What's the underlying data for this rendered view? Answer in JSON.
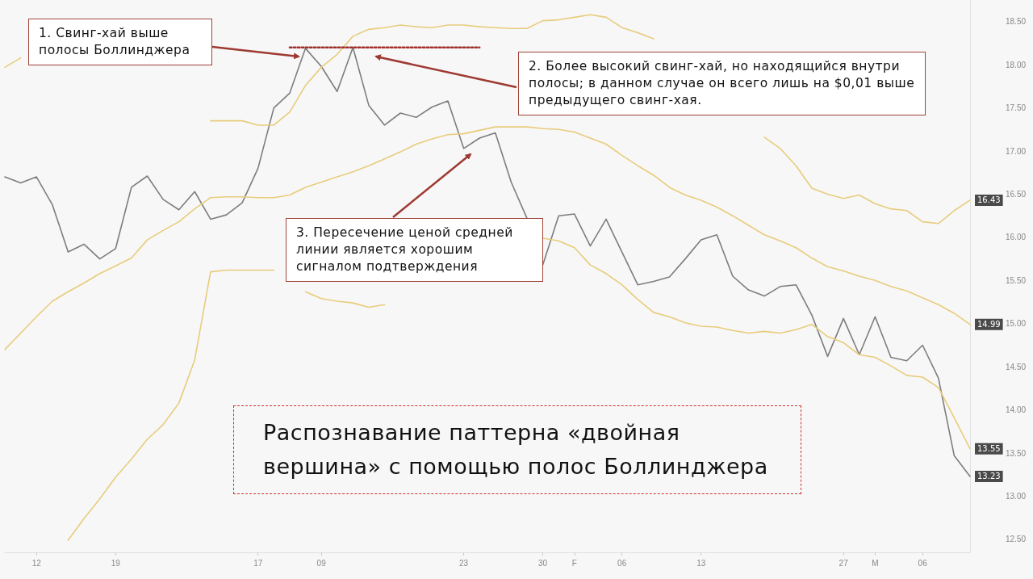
{
  "chart_data": {
    "type": "line",
    "title": "Распознавание паттерна «двойная вершина» с помощью полос Боллинджера",
    "annotations": [
      "1. Свинг-хай выше полосы Боллинджера",
      "2. Более высокий свинг-хай, но находящийся внутри полосы; в данном случае он всего лишь на $0,01 выше предыдущего свинг-хая.",
      "3. Пересечение ценой средней линии является хорошим сигналом подтверждения"
    ],
    "categories": [
      null,
      null,
      "12",
      null,
      null,
      null,
      null,
      "19",
      null,
      null,
      null,
      null,
      null,
      null,
      null,
      null,
      "17",
      null,
      null,
      null,
      "09",
      null,
      null,
      null,
      null,
      null,
      null,
      null,
      null,
      "23",
      null,
      null,
      null,
      null,
      "30",
      null,
      "F",
      null,
      null,
      "06",
      null,
      null,
      null,
      null,
      "13",
      null,
      null,
      null,
      null,
      null,
      null,
      null,
      null,
      "27",
      null,
      "M",
      null,
      null,
      "06",
      null,
      null,
      null
    ],
    "series": [
      {
        "color": "#7d7d7d",
        "values": [
          16.7,
          16.63,
          16.7,
          16.38,
          15.83,
          15.92,
          15.75,
          15.87,
          16.58,
          16.71,
          16.44,
          16.32,
          16.53,
          16.21,
          16.26,
          16.4,
          16.8,
          17.5,
          17.67,
          18.19,
          17.98,
          17.69,
          18.2,
          17.53,
          17.3,
          17.44,
          17.39,
          17.51,
          17.58,
          17.03,
          17.15,
          17.21,
          16.64,
          16.22,
          15.68,
          16.25,
          16.27,
          15.9,
          16.21,
          15.83,
          15.45,
          15.49,
          15.54,
          15.75,
          15.97,
          16.03,
          15.55,
          15.39,
          15.32,
          15.43,
          15.45,
          15.1,
          14.62,
          15.06,
          14.64,
          15.08,
          14.61,
          14.57,
          14.75,
          14.37,
          13.47,
          13.23
        ],
        "value_labels": [
          null,
          null,
          null,
          null,
          null,
          null,
          null,
          null,
          null,
          null,
          null,
          null,
          null,
          null,
          null,
          null,
          null,
          null,
          null,
          null,
          null,
          null,
          null,
          null,
          null,
          null,
          null,
          null,
          null,
          null,
          null,
          null,
          null,
          null,
          null,
          null,
          null,
          null,
          null,
          null,
          null,
          null,
          null,
          null,
          null,
          null,
          null,
          null,
          null,
          null,
          null,
          null,
          null,
          null,
          null,
          null,
          null,
          null,
          null,
          null,
          null,
          "13.23"
        ]
      },
      {
        "color": "#e8cc7c",
        "values": [
          17.97,
          18.08,
          null,
          null,
          null,
          null,
          null,
          null,
          null,
          null,
          null,
          null,
          null,
          17.35,
          17.35,
          17.35,
          17.3,
          17.3,
          17.45,
          17.76,
          17.97,
          18.12,
          18.33,
          18.41,
          18.43,
          18.46,
          18.44,
          18.43,
          18.46,
          18.46,
          18.44,
          18.43,
          18.42,
          18.42,
          18.51,
          18.52,
          18.55,
          18.58,
          18.55,
          18.43,
          18.37,
          18.3,
          null,
          null,
          null,
          null,
          null,
          null,
          17.16,
          17.03,
          16.83,
          16.57,
          16.5,
          16.45,
          16.49,
          16.39,
          16.33,
          16.31,
          16.18,
          16.16,
          16.31,
          16.43
        ],
        "value_labels": [
          null,
          null,
          null,
          null,
          null,
          null,
          null,
          null,
          null,
          null,
          null,
          null,
          null,
          null,
          null,
          null,
          null,
          null,
          null,
          null,
          null,
          null,
          null,
          null,
          null,
          null,
          null,
          null,
          null,
          null,
          null,
          null,
          null,
          null,
          null,
          null,
          null,
          null,
          null,
          null,
          null,
          null,
          null,
          null,
          null,
          null,
          null,
          null,
          null,
          null,
          null,
          null,
          null,
          null,
          null,
          null,
          null,
          null,
          null,
          null,
          null,
          "16.43"
        ]
      },
      {
        "color": "#e8cc7c",
        "values": [
          14.7,
          14.89,
          15.08,
          15.26,
          15.37,
          15.47,
          15.58,
          15.67,
          15.76,
          15.97,
          16.08,
          16.18,
          16.33,
          16.46,
          16.47,
          16.47,
          16.46,
          16.46,
          16.49,
          16.58,
          16.64,
          16.7,
          16.76,
          16.83,
          16.91,
          16.99,
          17.08,
          17.14,
          17.19,
          17.2,
          17.24,
          17.28,
          17.28,
          17.28,
          17.26,
          17.25,
          17.22,
          17.15,
          17.08,
          16.95,
          16.83,
          16.72,
          16.58,
          16.49,
          16.43,
          16.35,
          16.25,
          16.14,
          16.03,
          15.96,
          15.88,
          15.76,
          15.66,
          15.61,
          15.55,
          15.5,
          15.43,
          15.38,
          15.3,
          15.22,
          15.12,
          14.99
        ],
        "value_labels": [
          null,
          null,
          null,
          null,
          null,
          null,
          null,
          null,
          null,
          null,
          null,
          null,
          null,
          null,
          null,
          null,
          null,
          null,
          null,
          null,
          null,
          null,
          null,
          null,
          null,
          null,
          null,
          null,
          null,
          null,
          null,
          null,
          null,
          null,
          null,
          null,
          null,
          null,
          null,
          null,
          null,
          null,
          null,
          null,
          null,
          null,
          null,
          null,
          null,
          null,
          null,
          null,
          null,
          null,
          null,
          null,
          null,
          null,
          null,
          null,
          null,
          "14.99"
        ]
      },
      {
        "color": "#e8cc7c",
        "values": [
          null,
          null,
          null,
          null,
          12.49,
          12.74,
          12.97,
          13.22,
          13.43,
          13.66,
          13.83,
          14.08,
          14.58,
          15.6,
          15.62,
          15.62,
          15.62,
          15.62,
          null,
          15.37,
          15.29,
          15.26,
          15.24,
          15.19,
          15.22,
          null,
          null,
          null,
          null,
          null,
          null,
          null,
          null,
          null,
          15.99,
          15.96,
          15.88,
          15.68,
          15.58,
          15.45,
          15.28,
          15.13,
          15.08,
          15.01,
          14.97,
          14.96,
          14.92,
          14.89,
          14.91,
          14.89,
          14.93,
          14.99,
          14.85,
          14.78,
          14.64,
          14.61,
          14.51,
          14.4,
          14.38,
          14.26,
          13.91,
          13.55
        ],
        "value_labels": [
          null,
          null,
          null,
          null,
          null,
          null,
          null,
          null,
          null,
          null,
          null,
          null,
          null,
          null,
          null,
          null,
          null,
          null,
          null,
          null,
          null,
          null,
          null,
          null,
          null,
          null,
          null,
          null,
          null,
          null,
          null,
          null,
          null,
          null,
          null,
          null,
          null,
          null,
          null,
          null,
          null,
          null,
          null,
          null,
          null,
          null,
          null,
          null,
          null,
          null,
          null,
          null,
          null,
          null,
          null,
          null,
          null,
          null,
          null,
          null,
          null,
          "13.55"
        ]
      },
      {
        "color": "#a0302b",
        "line_style": "dotted",
        "values": [
          null,
          null,
          null,
          null,
          null,
          null,
          null,
          null,
          null,
          null,
          null,
          null,
          null,
          null,
          null,
          null,
          null,
          null,
          18.2,
          18.2,
          18.2,
          18.2,
          18.2,
          18.2,
          18.2,
          18.2,
          18.2,
          18.2,
          18.2,
          18.2,
          18.2,
          null,
          null,
          null,
          null,
          null,
          null,
          null,
          null,
          null,
          null,
          null,
          null,
          null,
          null,
          null,
          null,
          null,
          null,
          null,
          null,
          null,
          null,
          null,
          null,
          null,
          null,
          null,
          null,
          null,
          null,
          null
        ]
      }
    ],
    "ylim": [
      12.35,
      18.75
    ],
    "yticks": [
      {
        "value": 12.5,
        "label": "12.50"
      },
      {
        "value": 13,
        "label": "13.00"
      },
      {
        "value": 13.5,
        "label": "13.50"
      },
      {
        "value": 14,
        "label": "14.00"
      },
      {
        "value": 14.5,
        "label": "14.50"
      },
      {
        "value": 15,
        "label": "15.00"
      },
      {
        "value": 15.5,
        "label": "15.50"
      },
      {
        "value": 16,
        "label": "16.00"
      },
      {
        "value": 16.5,
        "label": "16.50"
      },
      {
        "value": 17,
        "label": "17.00"
      },
      {
        "value": 17.5,
        "label": "17.50"
      },
      {
        "value": 18,
        "label": "18.00"
      },
      {
        "value": 18.5,
        "label": "18.50"
      }
    ],
    "grid": false,
    "marker": "none",
    "line_style": "solid"
  }
}
